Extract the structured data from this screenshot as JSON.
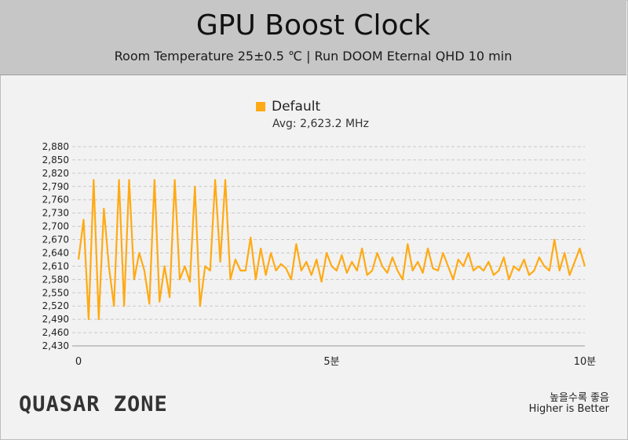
{
  "header": {
    "title": "GPU Boost Clock",
    "subtitle": "Room Temperature 25±0.5 ℃  |  Run DOOM Eternal QHD 10 min"
  },
  "legend": {
    "series_name": "Default",
    "avg_label": "Avg: 2,623.2 MHz"
  },
  "footer": {
    "logo_text": "QUASAR ZONE",
    "note_ko": "높을수록 좋음",
    "note_en": "Higher is Better"
  },
  "colors": {
    "series": "#ffaa14",
    "header_bg": "#c6c6c6",
    "background": "#f2f2f2",
    "grid": "#c8c8c8"
  },
  "chart_data": {
    "type": "line",
    "title": "GPU Boost Clock",
    "subtitle": "Room Temperature 25±0.5 ℃  |  Run DOOM Eternal QHD 10 min",
    "ylim": [
      2430,
      2880
    ],
    "yticks": [
      2430,
      2460,
      2490,
      2520,
      2550,
      2580,
      2610,
      2640,
      2670,
      2700,
      2730,
      2760,
      2790,
      2820,
      2850,
      2880
    ],
    "ytick_labels": [
      "2,430",
      "2,460",
      "2,490",
      "2,520",
      "2,550",
      "2,580",
      "2,610",
      "2,640",
      "2,670",
      "2,700",
      "2,730",
      "2,760",
      "2,790",
      "2,820",
      "2,850",
      "2,880"
    ],
    "xlim": [
      0,
      10
    ],
    "xticks": [
      0,
      5,
      10
    ],
    "xtick_labels": [
      "0",
      "5분",
      "10분"
    ],
    "grid": true,
    "legend_position": "top-center",
    "series": [
      {
        "name": "Default",
        "color": "#ffaa14",
        "x": [
          0.0,
          0.1,
          0.2,
          0.3,
          0.4,
          0.5,
          0.6,
          0.7,
          0.8,
          0.9,
          1.0,
          1.1,
          1.2,
          1.3,
          1.4,
          1.5,
          1.6,
          1.7,
          1.8,
          1.9,
          2.0,
          2.1,
          2.2,
          2.3,
          2.4,
          2.5,
          2.6,
          2.7,
          2.8,
          2.9,
          3.0,
          3.1,
          3.2,
          3.3,
          3.4,
          3.5,
          3.6,
          3.7,
          3.8,
          3.9,
          4.0,
          4.1,
          4.2,
          4.3,
          4.4,
          4.5,
          4.6,
          4.7,
          4.8,
          4.9,
          5.0,
          5.1,
          5.2,
          5.3,
          5.4,
          5.5,
          5.6,
          5.7,
          5.8,
          5.9,
          6.0,
          6.1,
          6.2,
          6.3,
          6.4,
          6.5,
          6.6,
          6.7,
          6.8,
          6.9,
          7.0,
          7.1,
          7.2,
          7.3,
          7.4,
          7.5,
          7.6,
          7.7,
          7.8,
          7.9,
          8.0,
          8.1,
          8.2,
          8.3,
          8.4,
          8.5,
          8.6,
          8.7,
          8.8,
          8.9,
          9.0,
          9.1,
          9.2,
          9.3,
          9.4,
          9.5,
          9.6,
          9.7,
          9.8,
          9.9,
          10.0
        ],
        "values": [
          2625,
          2715,
          2490,
          2805,
          2490,
          2740,
          2610,
          2520,
          2805,
          2520,
          2805,
          2580,
          2640,
          2600,
          2525,
          2805,
          2530,
          2610,
          2540,
          2805,
          2580,
          2610,
          2575,
          2790,
          2520,
          2610,
          2600,
          2805,
          2620,
          2805,
          2580,
          2625,
          2600,
          2600,
          2675,
          2580,
          2650,
          2590,
          2640,
          2600,
          2615,
          2605,
          2580,
          2660,
          2600,
          2620,
          2590,
          2625,
          2575,
          2640,
          2610,
          2600,
          2635,
          2595,
          2620,
          2600,
          2650,
          2590,
          2600,
          2640,
          2610,
          2595,
          2630,
          2600,
          2580,
          2660,
          2600,
          2620,
          2595,
          2650,
          2605,
          2600,
          2640,
          2610,
          2580,
          2625,
          2610,
          2640,
          2600,
          2610,
          2600,
          2620,
          2590,
          2600,
          2630,
          2580,
          2610,
          2600,
          2625,
          2590,
          2600,
          2630,
          2610,
          2600,
          2670,
          2600,
          2640,
          2590,
          2620,
          2650,
          2610
        ]
      }
    ]
  }
}
